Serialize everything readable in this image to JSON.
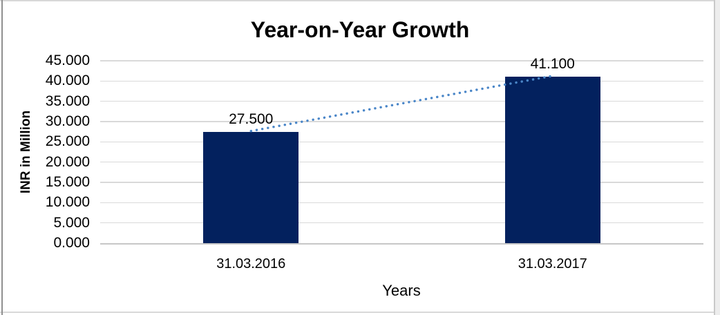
{
  "chart_data": {
    "type": "bar",
    "title": "Year-on-Year Growth",
    "categories": [
      "31.03.2016",
      "31.03.2017"
    ],
    "values": [
      27.5,
      41.1
    ],
    "data_labels": [
      "27.500",
      "41.100"
    ],
    "xlabel": "Years",
    "ylabel": "INR in Million",
    "ylim": [
      0,
      45
    ],
    "ytick_step": 5,
    "ytick_labels": [
      "45.000",
      "40.000",
      "35.000",
      "30.000",
      "25.000",
      "20.000",
      "15.000",
      "10.000",
      "5.000",
      "0.000"
    ],
    "grid": true,
    "legend": false,
    "trendline": {
      "style": "dotted",
      "connects": [
        "31.03.2016",
        "31.03.2017"
      ],
      "color": "#4A86C8"
    },
    "colors": {
      "bar": "#03215E",
      "gridline": "#D9D9D9",
      "axis_line": "#C7C7C7",
      "text": "#000000",
      "background": "#FFFFFF"
    }
  }
}
